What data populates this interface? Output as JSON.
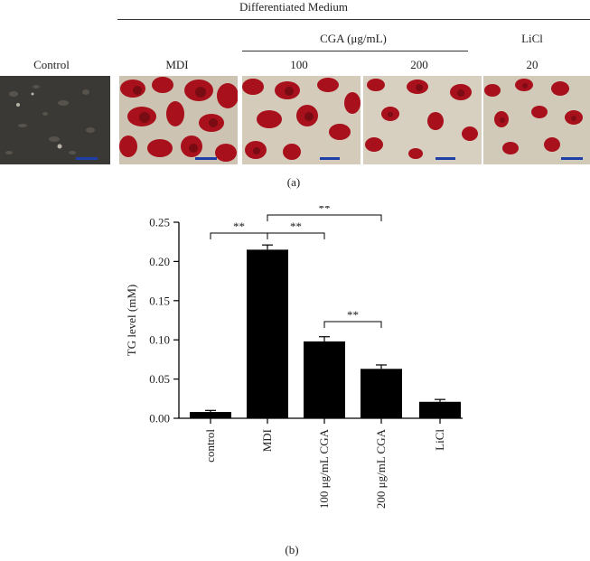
{
  "panel_a": {
    "header": "Differentiated Medium",
    "group_cga": "CGA (μg/mL)",
    "group_licl": "LiCl",
    "labels": [
      "Control",
      "MDI",
      "100",
      "200",
      "20"
    ],
    "caption": "(a)"
  },
  "panel_b": {
    "caption": "(b)"
  },
  "colors": {
    "bar": "#000000",
    "stain": "#a8101c",
    "scale_bar": "#1e3fa8"
  },
  "chart_data": {
    "type": "bar",
    "categories": [
      "control",
      "MDI",
      "100 μg/mL CGA",
      "200 μg/mL CGA",
      "LiCl"
    ],
    "values": [
      0.008,
      0.215,
      0.098,
      0.063,
      0.021
    ],
    "errors": [
      0.002,
      0.006,
      0.006,
      0.005,
      0.003
    ],
    "ylabel": "TG level (mM)",
    "xlabel": "",
    "ylim": [
      0,
      0.25
    ],
    "yticks": [
      "0.00",
      "0.05",
      "0.10",
      "0.15",
      "0.20",
      "0.25"
    ],
    "significance": [
      {
        "from": 0,
        "to": 1,
        "label": "**"
      },
      {
        "from": 1,
        "to": 2,
        "label": "**"
      },
      {
        "from": 1,
        "to": 3,
        "label": "**"
      },
      {
        "from": 2,
        "to": 3,
        "label": "**"
      }
    ]
  }
}
